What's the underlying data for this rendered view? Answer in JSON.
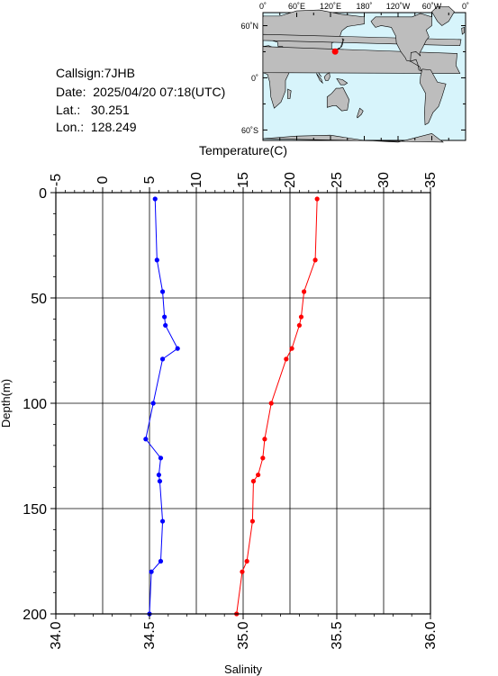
{
  "info": {
    "callsign": "Callsign:7JHB",
    "date": "Date:  2025/04/20 07:18(UTC)",
    "lat": "Lat.:   30.251",
    "lon": "Lon.:  128.249"
  },
  "map": {
    "top_labels": [
      "0˚",
      "60˚E",
      "120˚E",
      "180˚",
      "120˚W",
      "60˚W",
      "0˚"
    ],
    "left_labels": [
      "60˚N",
      "0˚",
      "60˚S"
    ],
    "ocean_color": "#d7f4fb",
    "land_color": "#bdbdbd",
    "station": {
      "lon": 128.249,
      "lat": 30.251,
      "color": "#ff0000"
    }
  },
  "chart_data": {
    "type": "line",
    "ylabel": "Depth(m)",
    "ylim": [
      200,
      0
    ],
    "yticks": [
      0,
      50,
      100,
      150,
      200
    ],
    "top_axis": {
      "label": "Temperature(C)",
      "range": [
        -5,
        35
      ],
      "ticks": [
        -5,
        0,
        5,
        10,
        15,
        20,
        25,
        30,
        35
      ]
    },
    "bottom_axis": {
      "label": "Salinity",
      "range": [
        34.0,
        36.0
      ],
      "ticks": [
        "34.0",
        "34.5",
        "35.0",
        "35.5",
        "36.0"
      ]
    },
    "series": [
      {
        "axis": "top",
        "color": "#ff0000",
        "points": [
          {
            "x": 22.9,
            "y": 3
          },
          {
            "x": 22.7,
            "y": 32
          },
          {
            "x": 21.5,
            "y": 47
          },
          {
            "x": 21.2,
            "y": 59
          },
          {
            "x": 21.0,
            "y": 63
          },
          {
            "x": 20.2,
            "y": 74
          },
          {
            "x": 19.6,
            "y": 79
          },
          {
            "x": 18.0,
            "y": 100
          },
          {
            "x": 17.3,
            "y": 117
          },
          {
            "x": 17.1,
            "y": 126
          },
          {
            "x": 16.6,
            "y": 134
          },
          {
            "x": 16.1,
            "y": 137
          },
          {
            "x": 16.0,
            "y": 156
          },
          {
            "x": 15.4,
            "y": 175
          },
          {
            "x": 14.9,
            "y": 180
          },
          {
            "x": 14.3,
            "y": 200
          }
        ]
      },
      {
        "axis": "bottom",
        "color": "#0000ff",
        "points": [
          {
            "x": 34.53,
            "y": 3
          },
          {
            "x": 34.54,
            "y": 32
          },
          {
            "x": 34.57,
            "y": 47
          },
          {
            "x": 34.58,
            "y": 59
          },
          {
            "x": 34.585,
            "y": 63
          },
          {
            "x": 34.65,
            "y": 74
          },
          {
            "x": 34.57,
            "y": 79
          },
          {
            "x": 34.52,
            "y": 100
          },
          {
            "x": 34.48,
            "y": 117
          },
          {
            "x": 34.56,
            "y": 126
          },
          {
            "x": 34.55,
            "y": 134
          },
          {
            "x": 34.555,
            "y": 137
          },
          {
            "x": 34.57,
            "y": 156
          },
          {
            "x": 34.56,
            "y": 175
          },
          {
            "x": 34.51,
            "y": 180
          },
          {
            "x": 34.5,
            "y": 200
          }
        ]
      }
    ]
  }
}
